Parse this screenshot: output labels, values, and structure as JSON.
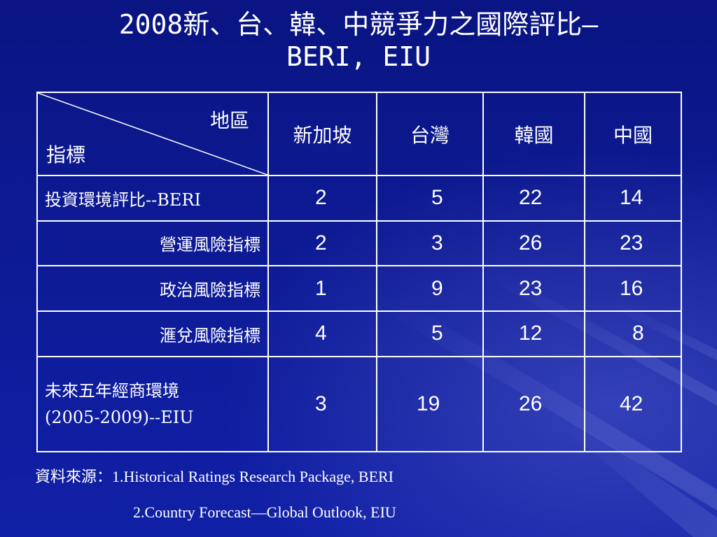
{
  "slide": {
    "title_line1": "2008新、台、韓、中競爭力之國際評比—",
    "title_line2": "BERI, EIU"
  },
  "table": {
    "corner_top": "地區",
    "corner_bottom": "指標",
    "columns": [
      "新加坡",
      "台灣",
      "韓國",
      "中國"
    ],
    "rows": [
      {
        "label": "投資環境評比--BERI",
        "values": [
          "2",
          "5",
          "22",
          "14"
        ]
      },
      {
        "label": "營運風險指標",
        "values": [
          "2",
          "3",
          "26",
          "23"
        ]
      },
      {
        "label": "政治風險指標",
        "values": [
          "1",
          "9",
          "23",
          "16"
        ]
      },
      {
        "label": "滙兌風險指標",
        "values": [
          "4",
          "5",
          "12",
          "8"
        ]
      },
      {
        "label_line1": "未來五年經商環境",
        "label_line2": "(2005-2009)--EIU",
        "values": [
          "3",
          "19",
          "26",
          "42"
        ]
      }
    ]
  },
  "source": {
    "line1": "資料來源：1.Historical Ratings Research Package, BERI",
    "line2": "2.Country Forecast—Global Outlook, EIU"
  },
  "colors": {
    "background": "#0c1890",
    "text": "#ffffff",
    "table_border": "#ffffff"
  }
}
